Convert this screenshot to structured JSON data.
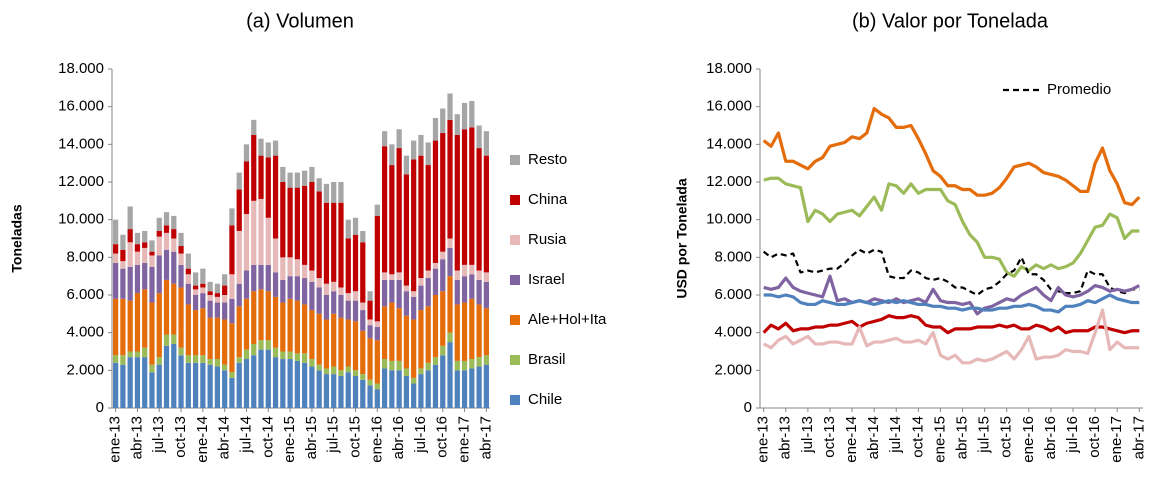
{
  "chart_data": [
    {
      "type": "bar",
      "stacked": true,
      "title": "(a)  Volumen",
      "y_label": "Toneladas",
      "categories": [
        "ene-13",
        null,
        null,
        "abr-13",
        null,
        null,
        "jul-13",
        null,
        null,
        "oct-13",
        null,
        null,
        "ene-14",
        null,
        null,
        "abr-14",
        null,
        null,
        "jul-14",
        null,
        null,
        "oct-14",
        null,
        null,
        "ene-15",
        null,
        null,
        "abr-15",
        null,
        null,
        "jul-15",
        null,
        null,
        "oct-15",
        null,
        null,
        "ene-16",
        null,
        null,
        "abr-16",
        null,
        null,
        "jul-16",
        null,
        null,
        "oct-16",
        null,
        null,
        "ene-17",
        null,
        null,
        "abr-17"
      ],
      "ylim": [
        0,
        18000
      ],
      "yticks": [
        0,
        {
          "value": 2000,
          "label": "2.000"
        },
        {
          "value": 4000,
          "label": "4.000"
        },
        {
          "value": 6000,
          "label": "6.000"
        },
        {
          "value": 8000,
          "label": "8.000"
        },
        {
          "value": 10000,
          "label": "10.000"
        },
        {
          "value": 12000,
          "label": "12.000"
        },
        {
          "value": 14000,
          "label": "14.000"
        },
        {
          "value": 16000,
          "label": "16.000"
        },
        {
          "value": 18000,
          "label": "18.000"
        }
      ],
      "legend": "right",
      "series": [
        {
          "name": "Chile",
          "color": "#4f81bd",
          "values": [
            2400,
            2300,
            2700,
            2700,
            2700,
            1900,
            2300,
            3300,
            3400,
            2800,
            2400,
            2400,
            2400,
            2300,
            2200,
            2000,
            1600,
            2400,
            2600,
            2800,
            3100,
            3100,
            2700,
            2600,
            2600,
            2500,
            2400,
            2200,
            2000,
            1800,
            1800,
            1700,
            1900,
            1700,
            1500,
            1200,
            1000,
            2100,
            2000,
            2000,
            1700,
            1300,
            1800,
            2000,
            2300,
            2800,
            3500,
            2000,
            2000,
            2100,
            2200,
            2300
          ]
        },
        {
          "name": "Brasil",
          "color": "#9bbb59",
          "values": [
            400,
            500,
            300,
            300,
            500,
            400,
            400,
            600,
            500,
            400,
            400,
            400,
            400,
            300,
            400,
            300,
            300,
            300,
            500,
            600,
            500,
            500,
            500,
            400,
            400,
            400,
            500,
            400,
            300,
            300,
            400,
            300,
            300,
            300,
            300,
            300,
            300,
            500,
            500,
            500,
            400,
            300,
            300,
            400,
            400,
            500,
            500,
            500,
            500,
            500,
            500,
            500
          ]
        },
        {
          "name": "Ale+Hol+Ita",
          "color": "#e46c0a",
          "values": [
            3000,
            3000,
            2700,
            3100,
            3100,
            3300,
            3400,
            2900,
            2700,
            3200,
            2700,
            2400,
            2500,
            2200,
            2200,
            2400,
            2600,
            2700,
            2700,
            2800,
            2700,
            2600,
            2700,
            2600,
            2800,
            2800,
            2600,
            2600,
            2700,
            2600,
            2800,
            2800,
            2500,
            2600,
            2300,
            2200,
            2300,
            2800,
            3100,
            2800,
            2800,
            3100,
            3100,
            3000,
            3300,
            2900,
            3000,
            3000,
            3100,
            3200,
            2800,
            2500
          ]
        },
        {
          "name": "Israel",
          "color": "#8064a2",
          "values": [
            1900,
            1600,
            1800,
            1500,
            1400,
            1900,
            2000,
            1600,
            1700,
            1200,
            1100,
            800,
            800,
            900,
            800,
            900,
            1300,
            1200,
            1500,
            1400,
            1300,
            1400,
            1300,
            1200,
            1200,
            1300,
            1400,
            1500,
            1400,
            1300,
            1200,
            1200,
            1000,
            1100,
            1100,
            700,
            700,
            1400,
            1200,
            1500,
            1300,
            1200,
            1300,
            1500,
            1400,
            1700,
            1500,
            1300,
            1400,
            1300,
            1300,
            1400
          ]
        },
        {
          "name": "Rusia",
          "color": "#e6b9b8",
          "values": [
            500,
            400,
            1300,
            700,
            800,
            600,
            1000,
            900,
            700,
            600,
            500,
            300,
            300,
            300,
            300,
            400,
            1300,
            2800,
            3000,
            3400,
            3500,
            2500,
            1800,
            1200,
            1000,
            900,
            700,
            600,
            500,
            600,
            500,
            400,
            400,
            500,
            400,
            300,
            300,
            400,
            300,
            400,
            300,
            300,
            400,
            400,
            300,
            400,
            500,
            500,
            600,
            500,
            500,
            500
          ]
        },
        {
          "name": "China",
          "color": "#c00000",
          "values": [
            500,
            600,
            700,
            400,
            300,
            200,
            300,
            400,
            500,
            400,
            300,
            200,
            200,
            200,
            200,
            500,
            2600,
            2200,
            2800,
            3500,
            2300,
            3200,
            4400,
            4000,
            3700,
            3800,
            4200,
            4700,
            4600,
            4300,
            4200,
            4500,
            2900,
            3000,
            3200,
            1000,
            5600,
            6700,
            5800,
            6600,
            5900,
            7000,
            6500,
            5600,
            6500,
            6300,
            6300,
            7200,
            7200,
            7300,
            6500,
            6200
          ]
        },
        {
          "name": "Resto",
          "color": "#a6a6a6",
          "values": [
            1300,
            800,
            1200,
            600,
            600,
            600,
            700,
            700,
            700,
            700,
            800,
            700,
            800,
            500,
            500,
            600,
            900,
            900,
            900,
            800,
            900,
            800,
            800,
            800,
            800,
            800,
            800,
            800,
            700,
            1000,
            1100,
            1100,
            1000,
            900,
            600,
            500,
            600,
            800,
            1100,
            1000,
            1000,
            1000,
            1100,
            1200,
            1200,
            1300,
            1400,
            1100,
            1400,
            1400,
            1200,
            1300
          ]
        }
      ]
    },
    {
      "type": "line",
      "title": "(b)  Valor por Tonelada",
      "y_label": "USD por Tonelada",
      "categories": [
        "ene-13",
        null,
        null,
        "abr-13",
        null,
        null,
        "jul-13",
        null,
        null,
        "oct-13",
        null,
        null,
        "ene-14",
        null,
        null,
        "abr-14",
        null,
        null,
        "jul-14",
        null,
        null,
        "oct-14",
        null,
        null,
        "ene-15",
        null,
        null,
        "abr-15",
        null,
        null,
        "jul-15",
        null,
        null,
        "oct-15",
        null,
        null,
        "ene-16",
        null,
        null,
        "abr-16",
        null,
        null,
        "jul-16",
        null,
        null,
        "oct-16",
        null,
        null,
        "ene-17",
        null,
        null,
        "abr-17"
      ],
      "ylim": [
        0,
        18000
      ],
      "yticks": [
        0,
        {
          "value": 2000,
          "label": "2.000"
        },
        {
          "value": 4000,
          "label": "4.000"
        },
        {
          "value": 6000,
          "label": "6.000"
        },
        {
          "value": 8000,
          "label": "8.000"
        },
        {
          "value": 10000,
          "label": "10.000"
        },
        {
          "value": 12000,
          "label": "12.000"
        },
        {
          "value": 14000,
          "label": "14.000"
        },
        {
          "value": 16000,
          "label": "16.000"
        },
        {
          "value": 18000,
          "label": "18.000"
        }
      ],
      "legend": "top-right",
      "series": [
        {
          "color": "#e46c0a",
          "values": [
            14200,
            13900,
            14600,
            13100,
            13100,
            12900,
            12700,
            13100,
            13300,
            13900,
            14000,
            14100,
            14400,
            14300,
            14600,
            15900,
            15600,
            15400,
            14900,
            14900,
            15000,
            14300,
            13500,
            12600,
            12300,
            11800,
            11800,
            11600,
            11600,
            11300,
            11300,
            11400,
            11700,
            12200,
            12800,
            12900,
            13000,
            12800,
            12500,
            12400,
            12300,
            12100,
            11800,
            11500,
            11500,
            13000,
            13800,
            12600,
            11900,
            10900,
            10800,
            11200
          ]
        },
        {
          "color": "#9bbb59",
          "values": [
            12100,
            12200,
            12200,
            11900,
            11800,
            11700,
            9900,
            10500,
            10300,
            9900,
            10300,
            10400,
            10500,
            10200,
            10700,
            11200,
            10500,
            11900,
            11800,
            11400,
            11900,
            11400,
            11600,
            11600,
            11600,
            11000,
            10800,
            9900,
            9200,
            8800,
            8000,
            8000,
            7900,
            7200,
            7000,
            7500,
            7300,
            7600,
            7400,
            7600,
            7400,
            7500,
            7700,
            8200,
            8900,
            9600,
            9700,
            10300,
            10100,
            9000,
            9400,
            9400
          ]
        },
        {
          "name": "Promedio",
          "color": "#000000",
          "dashed": true,
          "values": [
            8300,
            8000,
            8200,
            8100,
            8200,
            7200,
            7300,
            7200,
            7300,
            7400,
            7400,
            7700,
            8100,
            8400,
            8200,
            8400,
            8300,
            7000,
            6900,
            6900,
            7300,
            7200,
            6900,
            6800,
            6900,
            6700,
            6400,
            6400,
            6200,
            6000,
            6300,
            6400,
            6700,
            7100,
            7300,
            8000,
            7100,
            7100,
            6800,
            6300,
            6200,
            6100,
            6100,
            6200,
            7300,
            7100,
            7100,
            6400,
            6200,
            6100,
            6300,
            6300
          ]
        },
        {
          "color": "#8064a2",
          "values": [
            6400,
            6300,
            6400,
            6900,
            6400,
            6200,
            6100,
            6000,
            5900,
            7000,
            5700,
            5800,
            5600,
            5700,
            5600,
            5800,
            5700,
            5600,
            5800,
            5600,
            5700,
            5800,
            5600,
            6300,
            5700,
            5600,
            5600,
            5500,
            5600,
            5000,
            5300,
            5400,
            5600,
            5800,
            5700,
            6000,
            6200,
            6400,
            6000,
            5700,
            6400,
            6000,
            5900,
            6000,
            6200,
            6500,
            6400,
            6200,
            6300,
            6200,
            6300,
            6500
          ]
        },
        {
          "color": "#4f81bd",
          "values": [
            6000,
            6000,
            5900,
            6000,
            5900,
            5600,
            5500,
            5500,
            5700,
            5600,
            5500,
            5500,
            5600,
            5700,
            5600,
            5500,
            5600,
            5700,
            5600,
            5700,
            5600,
            5500,
            5500,
            5400,
            5400,
            5300,
            5300,
            5200,
            5300,
            5300,
            5200,
            5200,
            5300,
            5300,
            5400,
            5400,
            5500,
            5400,
            5200,
            5200,
            5100,
            5400,
            5400,
            5500,
            5700,
            5600,
            5800,
            6000,
            5800,
            5700,
            5600,
            5600
          ]
        },
        {
          "color": "#c00000",
          "values": [
            4000,
            4400,
            4200,
            4500,
            4100,
            4200,
            4200,
            4300,
            4300,
            4400,
            4400,
            4500,
            4600,
            4300,
            4500,
            4600,
            4700,
            4900,
            4800,
            4800,
            4900,
            4800,
            4400,
            4300,
            4300,
            4000,
            4200,
            4200,
            4200,
            4300,
            4300,
            4300,
            4400,
            4300,
            4400,
            4200,
            4200,
            4400,
            4300,
            4100,
            4300,
            4000,
            4100,
            4100,
            4100,
            4300,
            4300,
            4200,
            4100,
            4000,
            4100,
            4100
          ]
        },
        {
          "color": "#e6b9b8",
          "values": [
            3400,
            3200,
            3600,
            3800,
            3400,
            3600,
            3800,
            3400,
            3400,
            3500,
            3500,
            3400,
            3400,
            4300,
            3300,
            3500,
            3500,
            3600,
            3700,
            3500,
            3500,
            3600,
            3400,
            4000,
            2800,
            2600,
            2800,
            2400,
            2400,
            2600,
            2500,
            2600,
            2800,
            3000,
            2600,
            3100,
            3800,
            2600,
            2700,
            2700,
            2800,
            3100,
            3000,
            3000,
            2900,
            4000,
            5200,
            3100,
            3500,
            3200,
            3200,
            3200
          ]
        }
      ]
    }
  ]
}
